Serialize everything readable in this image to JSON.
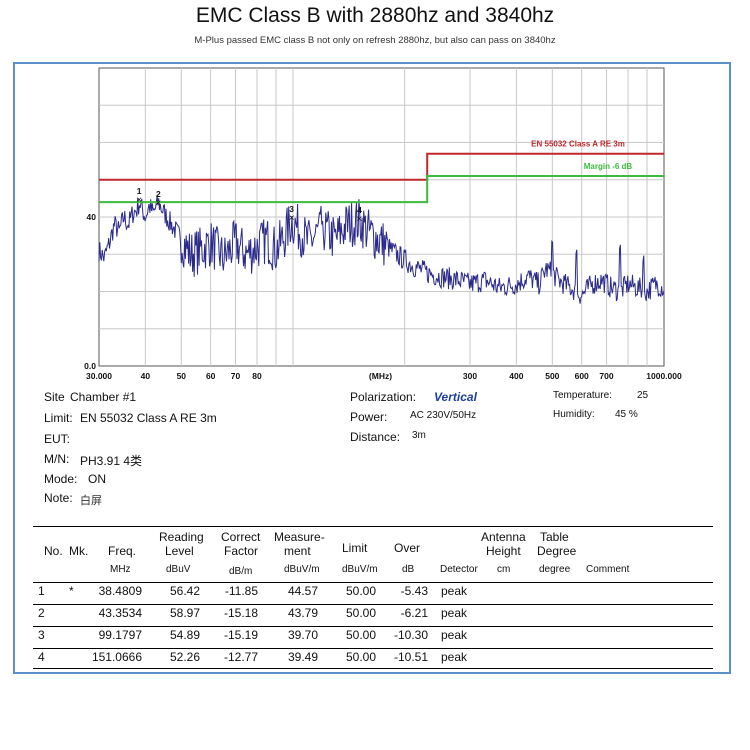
{
  "page": {
    "title": "EMC Class B with 2880hz and 3840hz",
    "subtitle": "M-Plus passed EMC class B not only on refresh 2880hz, but also can pass on 3840hz"
  },
  "chart_data": {
    "type": "line",
    "x_scale": "log",
    "xlim": [
      30,
      1000
    ],
    "ylim": [
      0,
      80
    ],
    "xlabel": "(MHz)",
    "x_ticks": [
      {
        "value": 30,
        "label": "30.000"
      },
      {
        "value": 40,
        "label": "40"
      },
      {
        "value": 50,
        "label": "50"
      },
      {
        "value": 60,
        "label": "60"
      },
      {
        "value": 70,
        "label": "70"
      },
      {
        "value": 80,
        "label": "80"
      },
      {
        "value": 300,
        "label": "300"
      },
      {
        "value": 400,
        "label": "400"
      },
      {
        "value": 500,
        "label": "500"
      },
      {
        "value": 600,
        "label": "600"
      },
      {
        "value": 700,
        "label": "700"
      },
      {
        "value": 1000,
        "label": "1000.000"
      }
    ],
    "y_ticks": [
      {
        "value": 0,
        "label": "0.0"
      },
      {
        "value": 40,
        "label": "40"
      }
    ],
    "grid": true,
    "limit_line": {
      "label": "EN 55032 Class A RE 3m",
      "color": "#c0282d",
      "x": [
        30,
        230,
        230,
        1000
      ],
      "y": [
        50,
        50,
        57,
        57
      ]
    },
    "margin_line": {
      "label": "Margin -6 dB",
      "color": "#3dbb3d",
      "x": [
        30,
        230,
        230,
        1000
      ],
      "y": [
        44,
        44,
        51,
        51
      ]
    },
    "trace": {
      "color": "#2a2a8a",
      "x": [
        30,
        31,
        32,
        33,
        34,
        35,
        36,
        37,
        38,
        38.5,
        40,
        41,
        42,
        43.35,
        45,
        47,
        50,
        53,
        56,
        60,
        65,
        70,
        75,
        80,
        85,
        90,
        95,
        99.18,
        105,
        110,
        120,
        130,
        140,
        151.07,
        160,
        175,
        190,
        210,
        230,
        250,
        280,
        300,
        330,
        360,
        400,
        430,
        460,
        480,
        500,
        520,
        560,
        600,
        640,
        680,
        720,
        760,
        800,
        850,
        900,
        950,
        1000
      ],
      "y": [
        31,
        29,
        33,
        38,
        36,
        40,
        38,
        41,
        42,
        44,
        40,
        43,
        41,
        44,
        41,
        38,
        34,
        30,
        31,
        33,
        29,
        33,
        30,
        32,
        34,
        31,
        35,
        39,
        36,
        33,
        37,
        34,
        38,
        39,
        36,
        33,
        30,
        27,
        25,
        24,
        23,
        22,
        23,
        21,
        22,
        24,
        22,
        26,
        25,
        23,
        21,
        19,
        22,
        23,
        21,
        20,
        22,
        21,
        20,
        22,
        21
      ],
      "noise": 3.0,
      "spikes": [
        {
          "x": 120,
          "y": 38
        },
        {
          "x": 500,
          "y": 33
        },
        {
          "x": 580,
          "y": 31
        },
        {
          "x": 760,
          "y": 32
        },
        {
          "x": 880,
          "y": 29
        }
      ]
    },
    "markers": [
      {
        "label": "1",
        "x": 38.4809,
        "y": 44.57
      },
      {
        "label": "2",
        "x": 43.3534,
        "y": 43.79
      },
      {
        "label": "3",
        "x": 99.1797,
        "y": 39.7
      },
      {
        "label": "4",
        "x": 151.0666,
        "y": 39.49
      }
    ]
  },
  "info": {
    "site_label": "Site",
    "site_value": "Chamber #1",
    "limit_label": "Limit:",
    "limit_value": "EN 55032 Class A RE 3m",
    "eut_label": "EUT:",
    "mn_label": "M/N:",
    "mn_value": "PH3.91 4类",
    "mode_label": "Mode:",
    "mode_value": "ON",
    "note_label": "Note:",
    "note_value": "白屏",
    "polarization_label": "Polarization:",
    "polarization_value": "Vertical",
    "power_label": "Power:",
    "power_value": "AC 230V/50Hz",
    "distance_label": "Distance:",
    "distance_value": "3m",
    "temperature_label": "Temperature:",
    "temperature_value": "25",
    "humidity_label": "Humidity:",
    "humidity_value": "45 %"
  },
  "table": {
    "headers": {
      "no": "No.",
      "mk": "Mk.",
      "freq": "Freq.",
      "reading_1": "Reading",
      "reading_2": "Level",
      "correct_1": "Correct",
      "correct_2": "Factor",
      "measure_1": "Measure-",
      "measure_2": "ment",
      "limit": "Limit",
      "over": "Over",
      "antenna_1": "Antenna",
      "antenna_2": "Height",
      "table_1": "Table",
      "table_2": "Degree"
    },
    "units": {
      "freq": "MHz",
      "reading": "dBuV",
      "correct": "dB/m",
      "measure": "dBuV/m",
      "limit": "dBuV/m",
      "over": "dB",
      "detector": "Detector",
      "antenna": "cm",
      "degree": "degree",
      "comment": "Comment"
    },
    "rows": [
      {
        "no": "1",
        "mk": "*",
        "freq": "38.4809",
        "reading": "56.42",
        "correct": "-11.85",
        "measure": "44.57",
        "limit": "50.00",
        "over": "-5.43",
        "detector": "peak"
      },
      {
        "no": "2",
        "mk": "",
        "freq": "43.3534",
        "reading": "58.97",
        "correct": "-15.18",
        "measure": "43.79",
        "limit": "50.00",
        "over": "-6.21",
        "detector": "peak"
      },
      {
        "no": "3",
        "mk": "",
        "freq": "99.1797",
        "reading": "54.89",
        "correct": "-15.19",
        "measure": "39.70",
        "limit": "50.00",
        "over": "-10.30",
        "detector": "peak"
      },
      {
        "no": "4",
        "mk": "",
        "freq": "151.0666",
        "reading": "52.26",
        "correct": "-12.77",
        "measure": "39.49",
        "limit": "50.00",
        "over": "-10.51",
        "detector": "peak"
      }
    ]
  }
}
